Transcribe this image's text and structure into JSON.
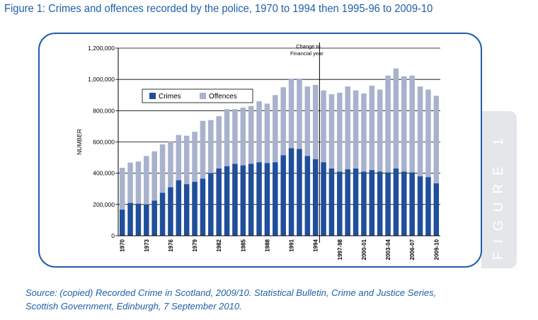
{
  "figure": {
    "title": "Figure 1:  Crimes and offences recorded by the police, 1970 to 1994 then 1995-96 to 2009-10",
    "side_tab": "FIGURE 1",
    "source_line1": "Source: (copied) Recorded Crime in Scotland, 2009/10. Statistical Bulletin, Crime and Justice Series,",
    "source_line2": "Scottish Government, Edinburgh, 7 September 2010."
  },
  "colors": {
    "crimes": "#1f4e9a",
    "offences": "#a9b2cc",
    "accent": "#1f5fa8",
    "gridline": "#000000"
  },
  "chart_data": {
    "type": "bar",
    "stacked": true,
    "ylabel": "NUMBER",
    "ylim": [
      0,
      1200000
    ],
    "yticks": [
      0,
      200000,
      400000,
      600000,
      800000,
      1000000,
      1200000
    ],
    "ytick_labels": [
      "0",
      "200,000",
      "400,000",
      "600,000",
      "800,000",
      "1,000,000",
      "1,200,000"
    ],
    "grid": true,
    "legend_position": "top-left",
    "annotation": {
      "text_line1": "Change to",
      "text_line2": "Financial year",
      "after_category": "1994"
    },
    "categories": [
      "1970",
      "1971",
      "1972",
      "1973",
      "1974",
      "1975",
      "1976",
      "1977",
      "1978",
      "1979",
      "1980",
      "1981",
      "1982",
      "1983",
      "1984",
      "1985",
      "1986",
      "1987",
      "1988",
      "1989",
      "1990",
      "1991",
      "1992",
      "1993",
      "1994",
      "1995-96",
      "1996-97",
      "1997-98",
      "1998-99",
      "1999-00",
      "2000-01",
      "2001-02",
      "2002-03",
      "2003-04",
      "2004-05",
      "2005-06",
      "2006-07",
      "2007-08",
      "2008-09",
      "2009-10"
    ],
    "tick_labels": [
      "1970",
      "",
      "",
      "1973",
      "",
      "",
      "1976",
      "",
      "",
      "1979",
      "",
      "",
      "1982",
      "",
      "",
      "1985",
      "",
      "",
      "1988",
      "",
      "",
      "1991",
      "",
      "",
      "1994",
      "",
      "",
      "1997-98",
      "",
      "",
      "2000-01",
      "",
      "",
      "2003-04",
      "",
      "",
      "2006-07",
      "",
      "",
      "2009-10"
    ],
    "series": [
      {
        "name": "Crimes",
        "values": [
          167000,
          210000,
          205000,
          200000,
          225000,
          275000,
          310000,
          355000,
          330000,
          345000,
          365000,
          400000,
          430000,
          445000,
          460000,
          450000,
          460000,
          470000,
          465000,
          470000,
          515000,
          560000,
          555000,
          510000,
          490000,
          470000,
          430000,
          410000,
          425000,
          430000,
          410000,
          420000,
          410000,
          405000,
          430000,
          410000,
          405000,
          380000,
          375000,
          335000
        ]
      },
      {
        "name": "Offences",
        "values": [
          268000,
          258000,
          270000,
          310000,
          315000,
          310000,
          295000,
          290000,
          310000,
          320000,
          370000,
          340000,
          335000,
          365000,
          350000,
          370000,
          370000,
          390000,
          380000,
          430000,
          435000,
          445000,
          450000,
          445000,
          475000,
          460000,
          475000,
          505000,
          530000,
          500000,
          500000,
          540000,
          525000,
          620000,
          640000,
          610000,
          620000,
          575000,
          560000,
          560000
        ]
      }
    ]
  }
}
